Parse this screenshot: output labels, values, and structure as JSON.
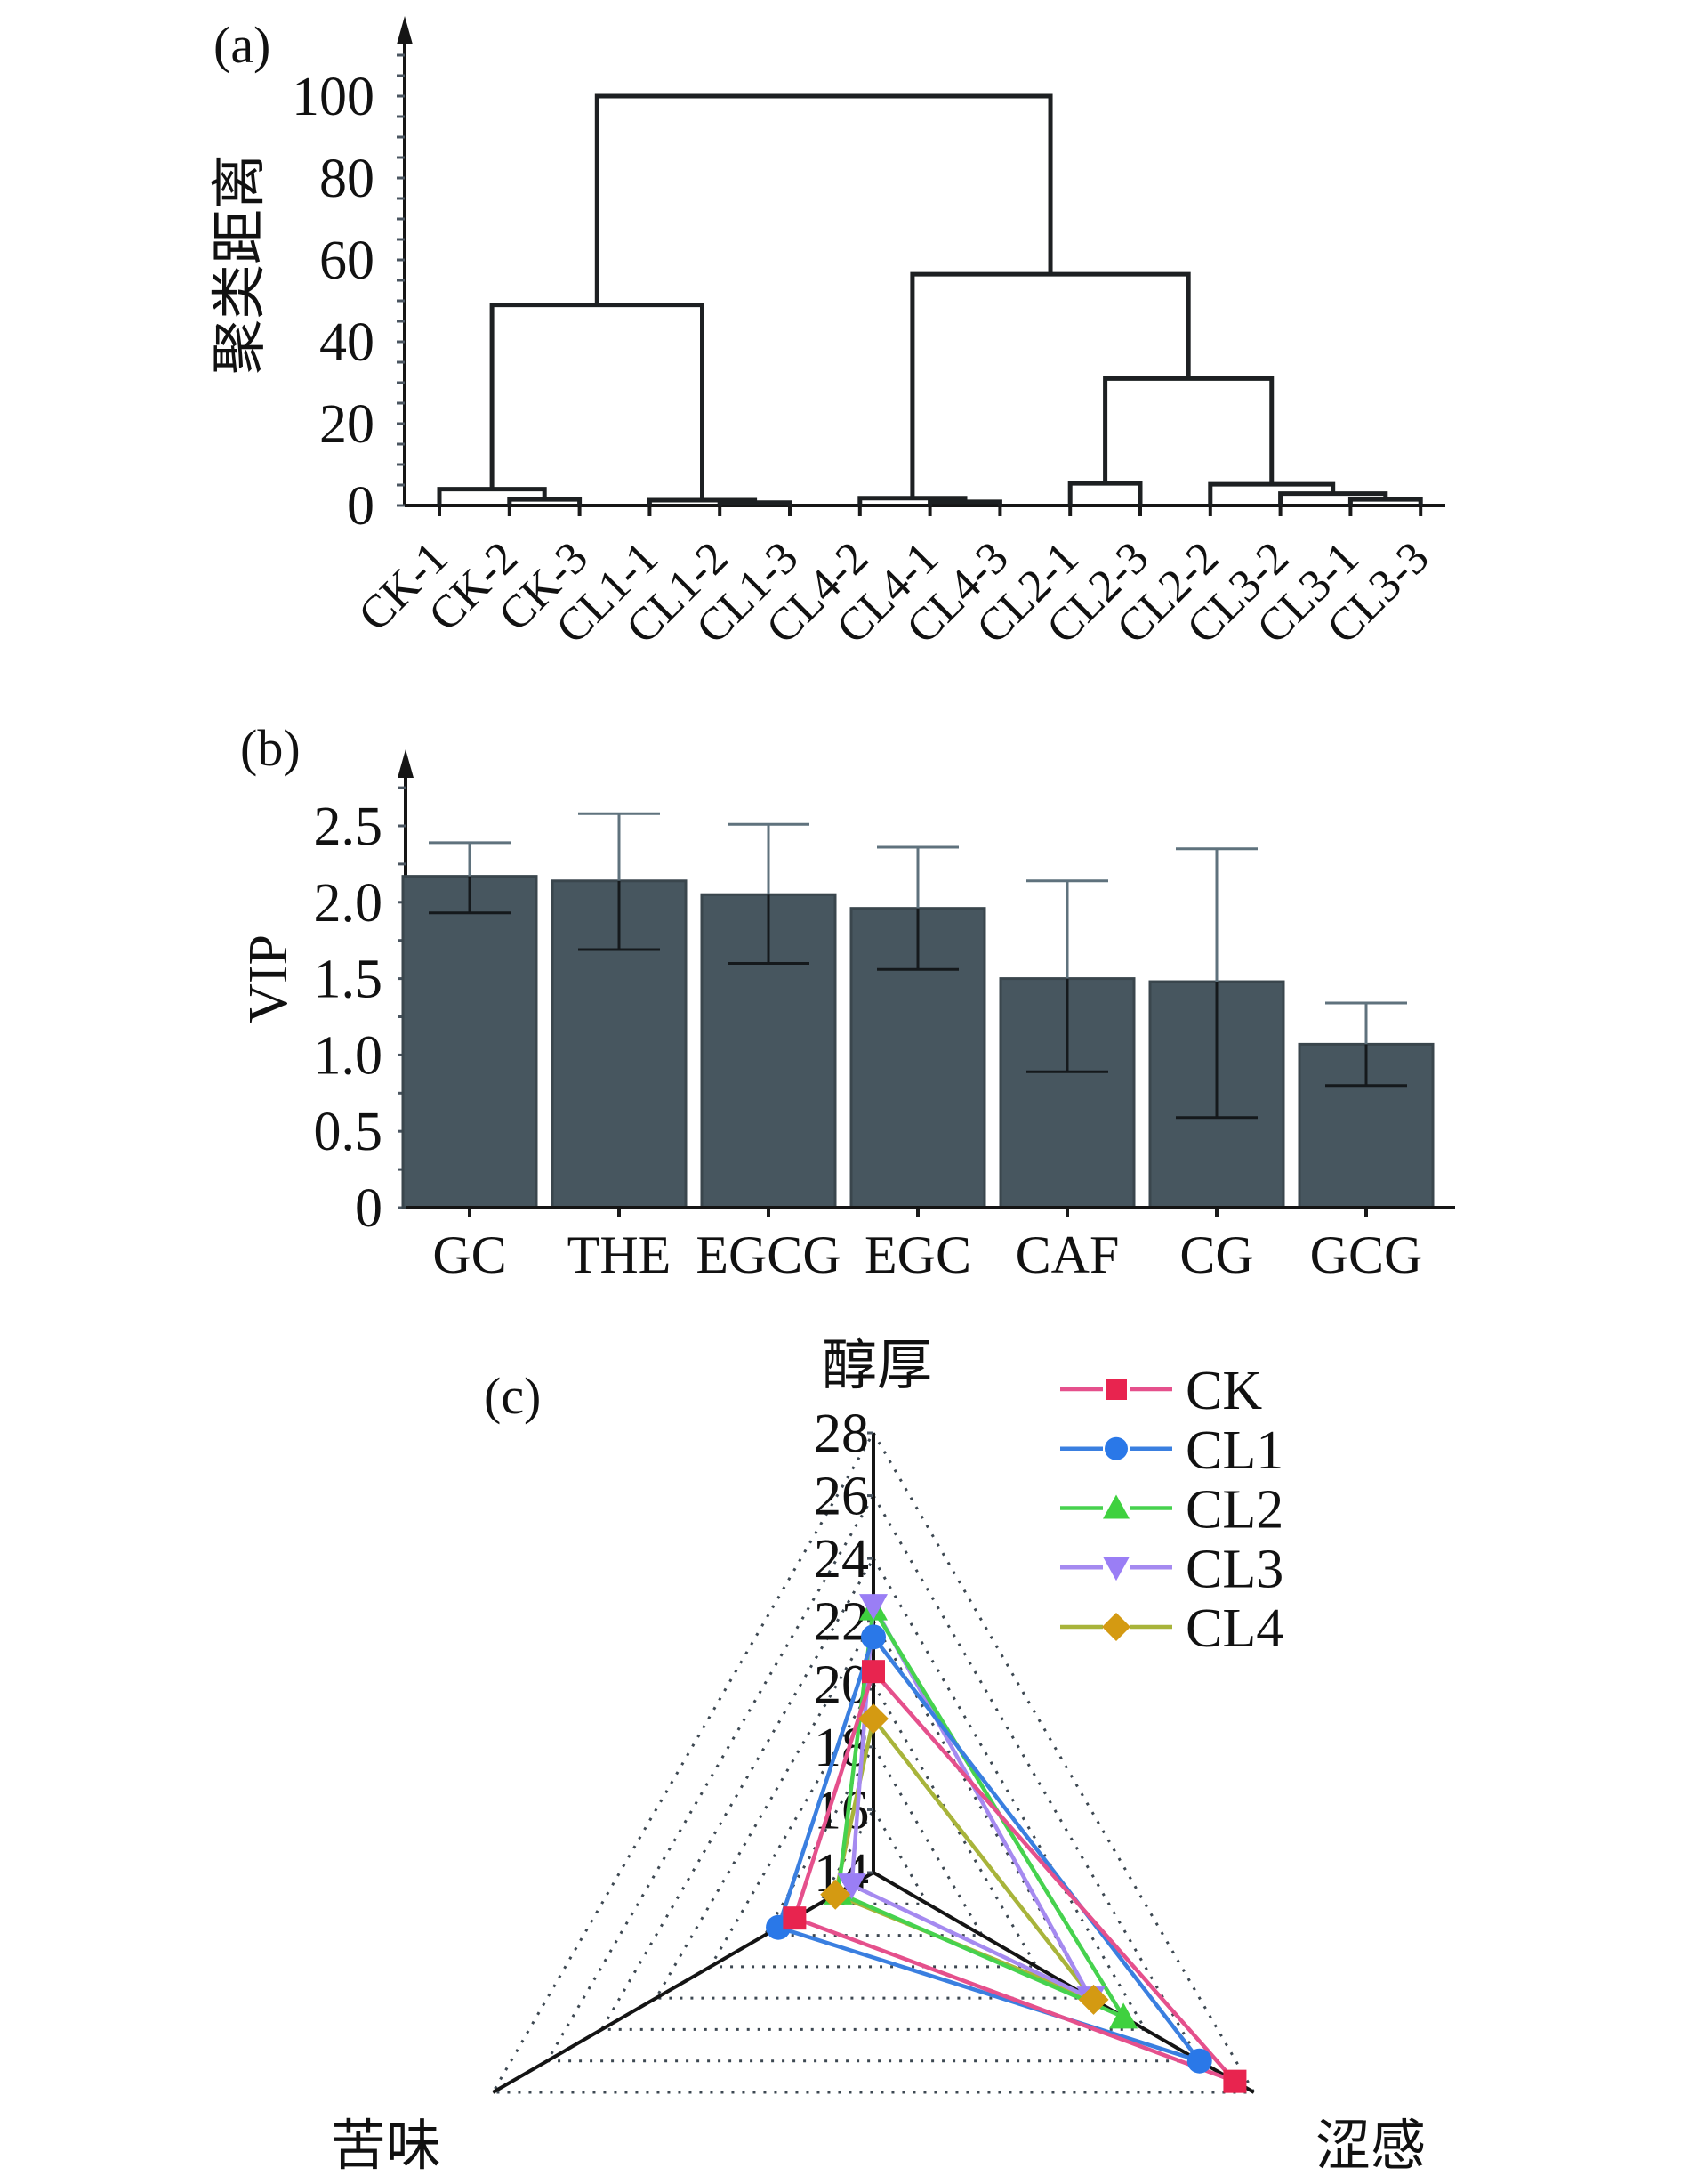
{
  "figure": {
    "panel_labels": {
      "a": "(a)",
      "b": "(b)",
      "c": "(c)"
    }
  },
  "chart_data": [
    {
      "panel": "(a)",
      "type": "line",
      "variant": "dendrogram",
      "title": "",
      "xlabel": "",
      "ylabel": "聚类距离",
      "ylim": [
        0,
        100
      ],
      "yticks": [
        0,
        20,
        40,
        60,
        80,
        100
      ],
      "ytick_labels": [
        "0",
        "20",
        "40",
        "60",
        "80",
        "100"
      ],
      "grid": false,
      "leaves": [
        "CK-1",
        "CK-2",
        "CK-3",
        "CL1-1",
        "CL1-2",
        "CL1-3",
        "CL4-2",
        "CL4-1",
        "CL4-3",
        "CL2-1",
        "CL2-3",
        "CL2-2",
        "CL3-2",
        "CL3-1",
        "CL3-3"
      ],
      "merges": [
        {
          "id": 15,
          "children": [
            1,
            2
          ],
          "height": 1.5
        },
        {
          "id": 16,
          "children": [
            0,
            15
          ],
          "height": 4.0
        },
        {
          "id": 17,
          "children": [
            4,
            5
          ],
          "height": 0.7
        },
        {
          "id": 18,
          "children": [
            3,
            17
          ],
          "height": 1.3
        },
        {
          "id": 19,
          "children": [
            16,
            18
          ],
          "height": 49
        },
        {
          "id": 20,
          "children": [
            7,
            8
          ],
          "height": 0.9
        },
        {
          "id": 21,
          "children": [
            6,
            20
          ],
          "height": 1.8
        },
        {
          "id": 22,
          "children": [
            9,
            10
          ],
          "height": 5.4
        },
        {
          "id": 23,
          "children": [
            13,
            14
          ],
          "height": 1.5
        },
        {
          "id": 24,
          "children": [
            12,
            23
          ],
          "height": 2.9
        },
        {
          "id": 25,
          "children": [
            11,
            24
          ],
          "height": 5.2
        },
        {
          "id": 26,
          "children": [
            22,
            25
          ],
          "height": 31
        },
        {
          "id": 27,
          "children": [
            21,
            26
          ],
          "height": 56.5
        },
        {
          "id": 28,
          "children": [
            19,
            27
          ],
          "height": 100
        }
      ]
    },
    {
      "panel": "(b)",
      "type": "bar",
      "title": "",
      "xlabel": "",
      "ylabel": "VIP",
      "ylim": [
        0,
        3.0
      ],
      "yticks": [
        0,
        0.5,
        1.0,
        1.5,
        2.0,
        2.5
      ],
      "ytick_labels": [
        "0",
        "0.5",
        "1.0",
        "1.5",
        "2.0",
        "2.5"
      ],
      "grid": false,
      "categories": [
        "GC",
        "THE",
        "EGCG",
        "EGC",
        "CAF",
        "CG",
        "GCG"
      ],
      "values": [
        2.17,
        2.14,
        2.05,
        1.96,
        1.5,
        1.48,
        1.07
      ],
      "error_upper": [
        2.39,
        2.58,
        2.51,
        2.36,
        2.14,
        2.35,
        1.34
      ],
      "error_lower": [
        1.93,
        1.69,
        1.6,
        1.56,
        0.89,
        0.59,
        0.8
      ],
      "bar_color": "#47565f"
    },
    {
      "panel": "(c)",
      "type": "line",
      "variant": "radar",
      "title": "",
      "axes": [
        "醇厚",
        "涩感",
        "苦味"
      ],
      "rlim": [
        14,
        28
      ],
      "rticks": [
        14,
        16,
        18,
        20,
        22,
        24,
        26,
        28
      ],
      "rtick_labels": [
        "14",
        "16",
        "18",
        "20",
        "22",
        "24",
        "26",
        "28"
      ],
      "legend_position": "top-right",
      "series": [
        {
          "name": "CK",
          "values": [
            20.4,
            27.3,
            16.9
          ],
          "line_color": "#e5508c",
          "marker_color": "#e8244f",
          "marker": "square"
        },
        {
          "name": "CL1",
          "values": [
            21.5,
            26.0,
            17.5
          ],
          "line_color": "#3a7fe0",
          "marker_color": "#2a78e8",
          "marker": "circle"
        },
        {
          "name": "CL2",
          "values": [
            22.4,
            23.2,
            15.3
          ],
          "line_color": "#46d24e",
          "marker_color": "#3fd13f",
          "marker": "triangle-up"
        },
        {
          "name": "CL3",
          "values": [
            22.5,
            22.0,
            14.8
          ],
          "line_color": "#a58af0",
          "marker_color": "#9a7ef5",
          "marker": "triangle-down"
        },
        {
          "name": "CL4",
          "values": [
            18.9,
            22.1,
            15.4
          ],
          "line_color": "#a8b43a",
          "marker_color": "#d49a12",
          "marker": "diamond"
        }
      ]
    }
  ]
}
